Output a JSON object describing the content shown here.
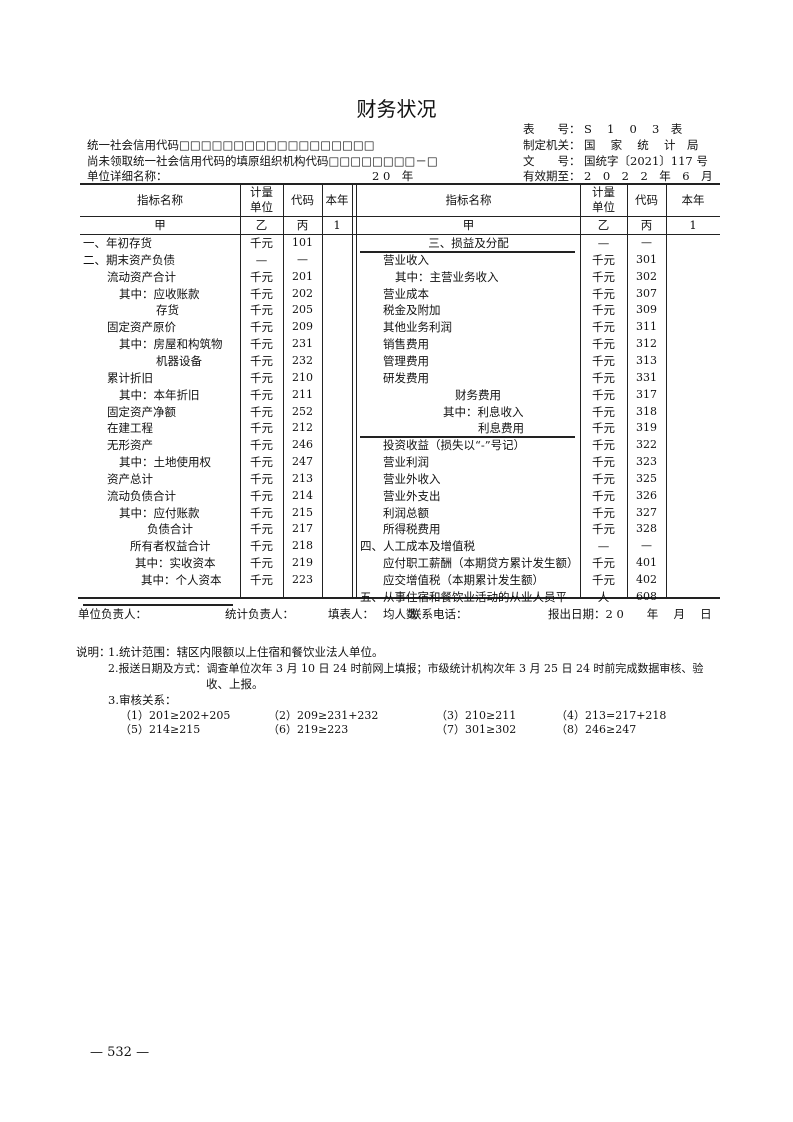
{
  "title": "财务状况",
  "header_left": {
    "credit_code": "统一社会信用代码□□□□□□□□□□□□□□□□□□",
    "org_code": "尚未领取统一社会信用代码的填原组织机构代码□□□□□□□□－□",
    "unit_name": "单位详细名称：",
    "year": "2 0　年"
  },
  "header_right": {
    "form_no_label": "表　　号：",
    "form_no": "S　 1　 0　 3　表",
    "authority_label": "制定机关：",
    "authority": "国　 家　 统　 计　局",
    "doc_no_label": "文　　号：",
    "doc_no": "国统字〔2021〕117 号",
    "valid_label": "有效期至：",
    "valid": "2　0　2　2　年　6　月"
  },
  "columns": {
    "name": "指标名称",
    "unit_l1": "计量",
    "unit_l2": "单位",
    "code": "代码",
    "year": "本年",
    "sub_name": "甲",
    "sub_unit": "乙",
    "sub_code": "丙",
    "sub_year": "1"
  },
  "left_rows": [
    {
      "name": "一、年初存货",
      "unit": "千元",
      "code": "101"
    },
    {
      "name": "二、期末资产负债",
      "unit": "—",
      "code": "—"
    },
    {
      "name": "流动资产合计",
      "unit": "千元",
      "code": "201"
    },
    {
      "name": "其中：应收账款",
      "unit": "千元",
      "code": "202"
    },
    {
      "name": "存货",
      "unit": "千元",
      "code": "205"
    },
    {
      "name": "固定资产原价",
      "unit": "千元",
      "code": "209"
    },
    {
      "name": "其中：房屋和构筑物",
      "unit": "千元",
      "code": "231"
    },
    {
      "name": "机器设备",
      "unit": "千元",
      "code": "232"
    },
    {
      "name": "累计折旧",
      "unit": "千元",
      "code": "210"
    },
    {
      "name": "其中：本年折旧",
      "unit": "千元",
      "code": "211"
    },
    {
      "name": "固定资产净额",
      "unit": "千元",
      "code": "252"
    },
    {
      "name": "在建工程",
      "unit": "千元",
      "code": "212"
    },
    {
      "name": "无形资产",
      "unit": "千元",
      "code": "246"
    },
    {
      "name": "其中：土地使用权",
      "unit": "千元",
      "code": "247"
    },
    {
      "name": "资产总计",
      "unit": "千元",
      "code": "213"
    },
    {
      "name": "流动负债合计",
      "unit": "千元",
      "code": "214"
    },
    {
      "name": "其中：应付账款",
      "unit": "千元",
      "code": "215"
    },
    {
      "name": "负债合计",
      "unit": "千元",
      "code": "217"
    },
    {
      "name": "所有者权益合计",
      "unit": "千元",
      "code": "218"
    },
    {
      "name": "其中：实收资本",
      "unit": "千元",
      "code": "219"
    },
    {
      "name": "其中：个人资本",
      "unit": "千元",
      "code": "223"
    }
  ],
  "right_rows": [
    {
      "name": "三、损益及分配",
      "unit": "—",
      "code": "—"
    },
    {
      "name": "营业收入",
      "unit": "千元",
      "code": "301"
    },
    {
      "name": "其中：主营业务收入",
      "unit": "千元",
      "code": "302"
    },
    {
      "name": "营业成本",
      "unit": "千元",
      "code": "307"
    },
    {
      "name": "税金及附加",
      "unit": "千元",
      "code": "309"
    },
    {
      "name": "其他业务利润",
      "unit": "千元",
      "code": "311"
    },
    {
      "name": "销售费用",
      "unit": "千元",
      "code": "312"
    },
    {
      "name": "管理费用",
      "unit": "千元",
      "code": "313"
    },
    {
      "name": "研发费用",
      "unit": "千元",
      "code": "331"
    },
    {
      "name": "财务费用",
      "unit": "千元",
      "code": "317"
    },
    {
      "name": "其中：利息收入",
      "unit": "千元",
      "code": "318"
    },
    {
      "name": "利息费用",
      "unit": "千元",
      "code": "319"
    },
    {
      "name": "投资收益（损失以“-”号记）",
      "unit": "千元",
      "code": "322"
    },
    {
      "name": "营业利润",
      "unit": "千元",
      "code": "323"
    },
    {
      "name": "营业外收入",
      "unit": "千元",
      "code": "325"
    },
    {
      "name": "营业外支出",
      "unit": "千元",
      "code": "326"
    },
    {
      "name": "利润总额",
      "unit": "千元",
      "code": "327"
    },
    {
      "name": "所得税费用",
      "unit": "千元",
      "code": "328"
    },
    {
      "name": "四、人工成本及增值税",
      "unit": "—",
      "code": "—"
    },
    {
      "name": "应付职工薪酬（本期贷方累计发生额）",
      "unit": "千元",
      "code": "401"
    },
    {
      "name": "应交增值税（本期累计发生额）",
      "unit": "千元",
      "code": "402"
    },
    {
      "name": "五、从事住宿和餐饮业活动的从业人员平",
      "name2": "均人数",
      "unit": "人",
      "code": "608"
    }
  ],
  "footer": {
    "unit_head": "单位负责人：",
    "stat_head": "统计负责人：",
    "filler": "填表人：",
    "phone": "联系电话：",
    "report_date": "报出日期：2 0　　年　 月　 日"
  },
  "notes": {
    "label": "说明：",
    "n1": "1.统计范围：辖区内限额以上住宿和餐饮业法人单位。",
    "n2a": "2.报送日期及方式：调查单位次年 3 月 10 日 24 时前网上填报；市级统计机构次年 3 月 25 日 24 时前完成数据审核、验",
    "n2b": "收、上报。",
    "n3": "3.审核关系：",
    "checks": [
      "（1）201≥202+205",
      "（2）209≥231+232",
      "（3）210≥211",
      "（4）213=217+218",
      "（5）214≥215",
      "（6）219≥223",
      "（7）301≥302",
      "（8）246≥247"
    ]
  },
  "page_number": "— 532 —"
}
